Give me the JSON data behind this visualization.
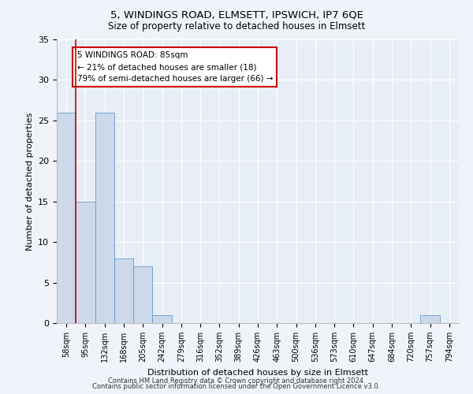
{
  "title": "5, WINDINGS ROAD, ELMSETT, IPSWICH, IP7 6QE",
  "subtitle": "Size of property relative to detached houses in Elmsett",
  "xlabel": "Distribution of detached houses by size in Elmsett",
  "ylabel": "Number of detached properties",
  "bar_color": "#cdd9ea",
  "bar_edge_color": "#6699cc",
  "categories": [
    "58sqm",
    "95sqm",
    "132sqm",
    "168sqm",
    "205sqm",
    "242sqm",
    "279sqm",
    "316sqm",
    "352sqm",
    "389sqm",
    "426sqm",
    "463sqm",
    "500sqm",
    "536sqm",
    "573sqm",
    "610sqm",
    "647sqm",
    "684sqm",
    "720sqm",
    "757sqm",
    "794sqm"
  ],
  "values": [
    26,
    15,
    26,
    8,
    7,
    1,
    0,
    0,
    0,
    0,
    0,
    0,
    0,
    0,
    0,
    0,
    0,
    0,
    0,
    1,
    0
  ],
  "vline_x": 0.5,
  "vline_color": "#cc0000",
  "annotation_text": "5 WINDINGS ROAD: 85sqm\n← 21% of detached houses are smaller (18)\n79% of semi-detached houses are larger (66) →",
  "annotation_box_color": "#ffffff",
  "annotation_box_edge": "#cc0000",
  "ylim": [
    0,
    35
  ],
  "yticks": [
    0,
    5,
    10,
    15,
    20,
    25,
    30,
    35
  ],
  "footer_line1": "Contains HM Land Registry data © Crown copyright and database right 2024.",
  "footer_line2": "Contains public sector information licensed under the Open Government Licence v3.0.",
  "background_color": "#f0f4fa",
  "plot_bg_color": "#e8eef6"
}
